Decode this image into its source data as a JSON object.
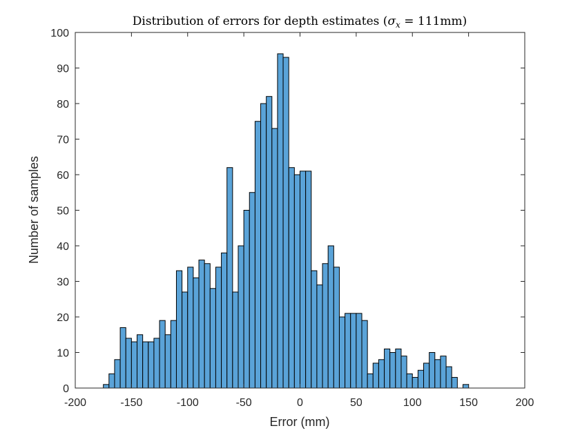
{
  "chart_data": {
    "type": "bar",
    "title": "Distribution of errors for depth estimates",
    "title_math": "(σ_x = 111mm)",
    "title_math_parts": {
      "open": "(",
      "sigma": "σ",
      "sub": "x",
      "rest": " = 111mm)"
    },
    "xlabel": "Error (mm)",
    "ylabel": "Number of samples",
    "xlim": [
      -200,
      200
    ],
    "ylim": [
      0,
      100
    ],
    "xticks": [
      -200,
      -150,
      -100,
      -50,
      0,
      50,
      100,
      150,
      200
    ],
    "yticks": [
      0,
      10,
      20,
      30,
      40,
      50,
      60,
      70,
      80,
      90,
      100
    ],
    "bin_width": 5,
    "bin_start": -175,
    "values": [
      1,
      4,
      8,
      17,
      14,
      13,
      15,
      13,
      13,
      14,
      19,
      15,
      19,
      33,
      27,
      34,
      31,
      36,
      35,
      28,
      34,
      38,
      62,
      27,
      40,
      50,
      55,
      75,
      80,
      82,
      73,
      94,
      93,
      62,
      60,
      61,
      61,
      33,
      29,
      35,
      40,
      34,
      20,
      21,
      21,
      21,
      19,
      4,
      7,
      8,
      11,
      10,
      11,
      9,
      4,
      3,
      5,
      7,
      10,
      8,
      9,
      6,
      3,
      0,
      1
    ],
    "bar_color": "#5AA3D8",
    "edge_color": "#000000",
    "grid": false,
    "box": true
  }
}
